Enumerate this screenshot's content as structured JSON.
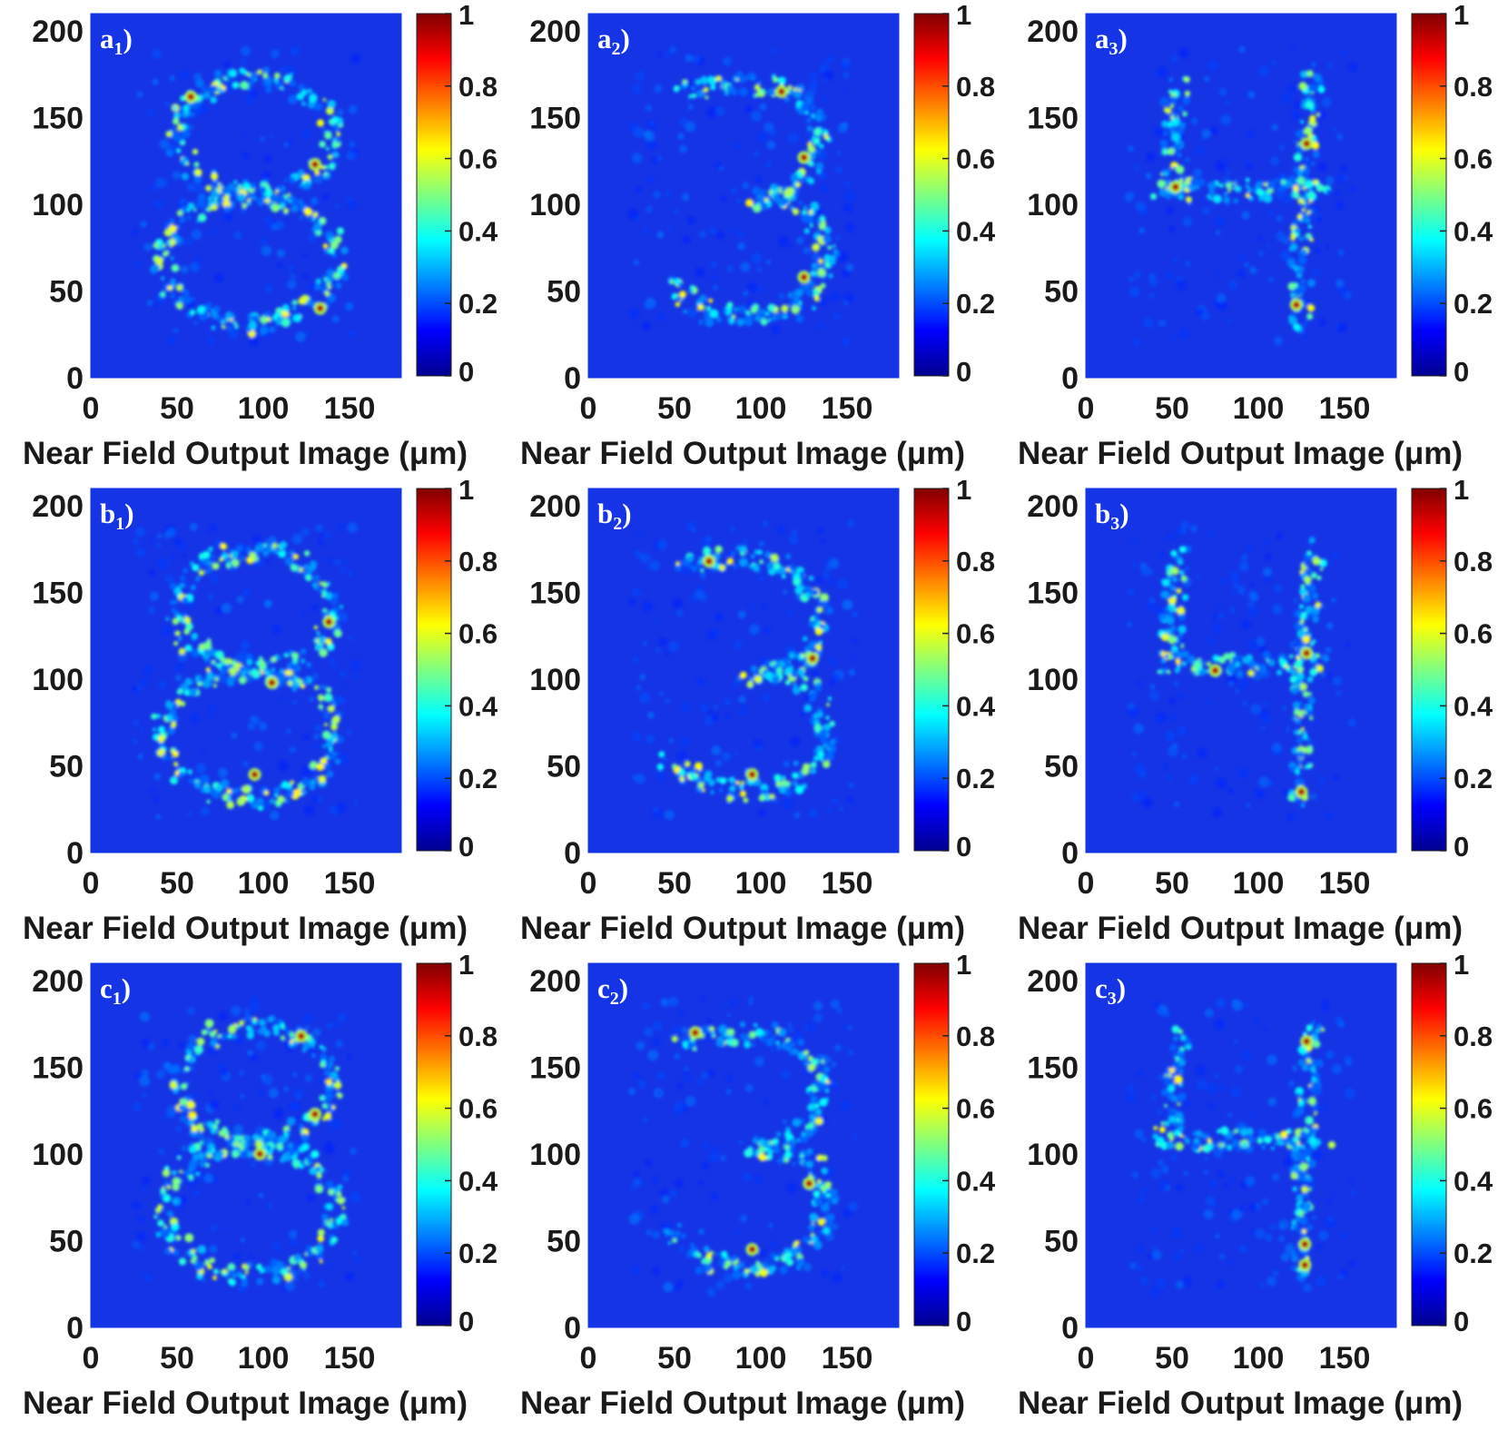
{
  "chart_data": [
    {
      "type": "heatmap",
      "panel_letter": "a",
      "panel_sub": "1",
      "xlabel": "Near Field Output Image (μm)",
      "ylabel": "",
      "xlim": [
        0,
        180
      ],
      "ylim": [
        0,
        210
      ],
      "xticks": [
        "0",
        "50",
        "100",
        "150"
      ],
      "yticks": [
        "0",
        "50",
        "100",
        "150",
        "200"
      ],
      "colorbar": {
        "range": [
          0,
          1
        ],
        "ticks": [
          "0",
          "0.2",
          "0.4",
          "0.6",
          "0.8",
          "1"
        ],
        "colormap": "jet"
      },
      "shape": "digit-8",
      "hotspots": [
        [
          130,
          123
        ],
        [
          58,
          162
        ],
        [
          133,
          40
        ]
      ]
    },
    {
      "type": "heatmap",
      "panel_letter": "a",
      "panel_sub": "2",
      "xlabel": "Near Field Output Image (μm)",
      "ylabel": "",
      "xlim": [
        0,
        180
      ],
      "ylim": [
        0,
        210
      ],
      "xticks": [
        "0",
        "50",
        "100",
        "150"
      ],
      "yticks": [
        "0",
        "50",
        "100",
        "150",
        "200"
      ],
      "colorbar": {
        "range": [
          0,
          1
        ],
        "ticks": [
          "0",
          "0.2",
          "0.4",
          "0.6",
          "0.8",
          "1"
        ],
        "colormap": "jet"
      },
      "shape": "digit-3",
      "hotspots": [
        [
          125,
          127
        ],
        [
          112,
          165
        ],
        [
          125,
          58
        ]
      ]
    },
    {
      "type": "heatmap",
      "panel_letter": "a",
      "panel_sub": "3",
      "xlabel": "Near Field Output Image (μm)",
      "ylabel": "",
      "xlim": [
        0,
        180
      ],
      "ylim": [
        0,
        210
      ],
      "xticks": [
        "0",
        "50",
        "100",
        "150"
      ],
      "yticks": [
        "0",
        "50",
        "100",
        "150",
        "200"
      ],
      "colorbar": {
        "range": [
          0,
          1
        ],
        "ticks": [
          "0",
          "0.2",
          "0.4",
          "0.6",
          "0.8",
          "1"
        ],
        "colormap": "jet"
      },
      "shape": "digit-4",
      "hotspots": [
        [
          128,
          135
        ],
        [
          122,
          42
        ],
        [
          52,
          110
        ]
      ]
    },
    {
      "type": "heatmap",
      "panel_letter": "b",
      "panel_sub": "1",
      "xlabel": "Near Field Output Image (μm)",
      "ylabel": "",
      "xlim": [
        0,
        180
      ],
      "ylim": [
        0,
        210
      ],
      "xticks": [
        "0",
        "50",
        "100",
        "150"
      ],
      "yticks": [
        "0",
        "50",
        "100",
        "150",
        "200"
      ],
      "colorbar": {
        "range": [
          0,
          1
        ],
        "ticks": [
          "0",
          "0.2",
          "0.4",
          "0.6",
          "0.8",
          "1"
        ],
        "colormap": "jet"
      },
      "shape": "digit-8",
      "hotspots": [
        [
          138,
          133
        ],
        [
          105,
          98
        ],
        [
          95,
          45
        ]
      ]
    },
    {
      "type": "heatmap",
      "panel_letter": "b",
      "panel_sub": "2",
      "xlabel": "Near Field Output Image (μm)",
      "ylabel": "",
      "xlim": [
        0,
        180
      ],
      "ylim": [
        0,
        210
      ],
      "xticks": [
        "0",
        "50",
        "100",
        "150"
      ],
      "yticks": [
        "0",
        "50",
        "100",
        "150",
        "200"
      ],
      "colorbar": {
        "range": [
          0,
          1
        ],
        "ticks": [
          "0",
          "0.2",
          "0.4",
          "0.6",
          "0.8",
          "1"
        ],
        "colormap": "jet"
      },
      "shape": "digit-3",
      "hotspots": [
        [
          130,
          112
        ],
        [
          70,
          168
        ],
        [
          95,
          45
        ]
      ]
    },
    {
      "type": "heatmap",
      "panel_letter": "b",
      "panel_sub": "3",
      "xlabel": "Near Field Output Image (μm)",
      "ylabel": "",
      "xlim": [
        0,
        180
      ],
      "ylim": [
        0,
        210
      ],
      "xticks": [
        "0",
        "50",
        "100",
        "150"
      ],
      "yticks": [
        "0",
        "50",
        "100",
        "150",
        "200"
      ],
      "colorbar": {
        "range": [
          0,
          1
        ],
        "ticks": [
          "0",
          "0.2",
          "0.4",
          "0.6",
          "0.8",
          "1"
        ],
        "colormap": "jet"
      },
      "shape": "digit-4",
      "hotspots": [
        [
          128,
          115
        ],
        [
          125,
          35
        ],
        [
          75,
          105
        ]
      ]
    },
    {
      "type": "heatmap",
      "panel_letter": "c",
      "panel_sub": "1",
      "xlabel": "Near Field Output Image (μm)",
      "ylabel": "",
      "xlim": [
        0,
        180
      ],
      "ylim": [
        0,
        210
      ],
      "xticks": [
        "0",
        "50",
        "100",
        "150"
      ],
      "yticks": [
        "0",
        "50",
        "100",
        "150",
        "200"
      ],
      "colorbar": {
        "range": [
          0,
          1
        ],
        "ticks": [
          "0",
          "0.2",
          "0.4",
          "0.6",
          "0.8",
          "1"
        ],
        "colormap": "jet"
      },
      "shape": "digit-8",
      "hotspots": [
        [
          122,
          168
        ],
        [
          98,
          100
        ],
        [
          130,
          123
        ]
      ]
    },
    {
      "type": "heatmap",
      "panel_letter": "c",
      "panel_sub": "2",
      "xlabel": "Near Field Output Image (μm)",
      "ylabel": "",
      "xlim": [
        0,
        180
      ],
      "ylim": [
        0,
        210
      ],
      "xticks": [
        "0",
        "50",
        "100",
        "150"
      ],
      "yticks": [
        "0",
        "50",
        "100",
        "150",
        "200"
      ],
      "colorbar": {
        "range": [
          0,
          1
        ],
        "ticks": [
          "0",
          "0.2",
          "0.4",
          "0.6",
          "0.8",
          "1"
        ],
        "colormap": "jet"
      },
      "shape": "digit-3",
      "hotspots": [
        [
          128,
          83
        ],
        [
          95,
          45
        ],
        [
          62,
          170
        ]
      ]
    },
    {
      "type": "heatmap",
      "panel_letter": "c",
      "panel_sub": "3",
      "xlabel": "Near Field Output Image (μm)",
      "ylabel": "",
      "xlim": [
        0,
        180
      ],
      "ylim": [
        0,
        210
      ],
      "xticks": [
        "0",
        "50",
        "100",
        "150"
      ],
      "yticks": [
        "0",
        "50",
        "100",
        "150",
        "200"
      ],
      "colorbar": {
        "range": [
          0,
          1
        ],
        "ticks": [
          "0",
          "0.2",
          "0.4",
          "0.6",
          "0.8",
          "1"
        ],
        "colormap": "jet"
      },
      "shape": "digit-4",
      "hotspots": [
        [
          128,
          165
        ],
        [
          127,
          48
        ],
        [
          127,
          36
        ]
      ]
    }
  ]
}
